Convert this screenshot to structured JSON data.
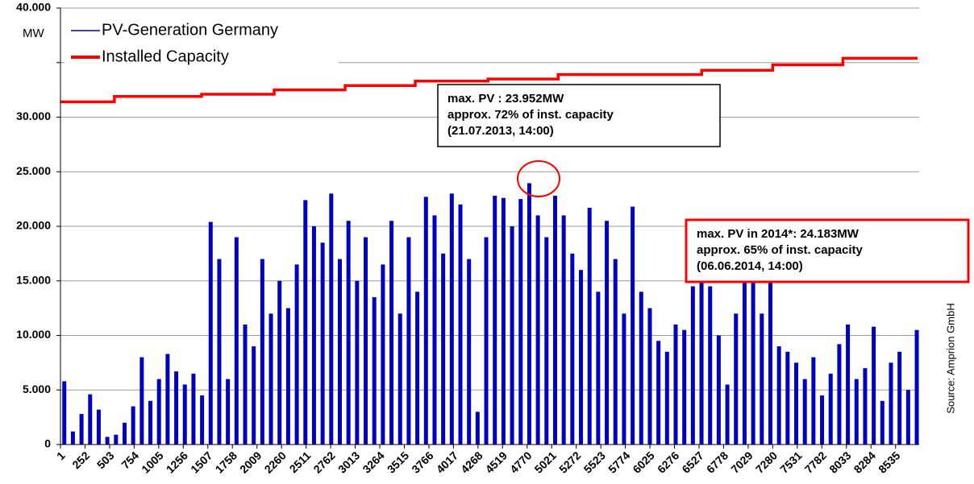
{
  "chart_data": {
    "type": "spike-step",
    "y_unit": "MW",
    "source": "Source: Amprion GmbH",
    "xlim": [
      1,
      8760
    ],
    "ylim": [
      0,
      40000
    ],
    "grid": true,
    "xticks": [
      1,
      252,
      503,
      754,
      1005,
      1256,
      1507,
      1758,
      2009,
      2260,
      2511,
      2762,
      3013,
      3264,
      3515,
      3766,
      4017,
      4268,
      4519,
      4770,
      5021,
      5272,
      5523,
      5774,
      6025,
      6276,
      6527,
      6778,
      7029,
      7280,
      7531,
      7782,
      8033,
      8284,
      8535
    ],
    "yticks": [
      0,
      {
        "value": 5000,
        "label": "5.000"
      },
      {
        "value": 10000,
        "label": "10.000"
      },
      {
        "value": 15000,
        "label": "15.000"
      },
      {
        "value": 20000,
        "label": "20.000"
      },
      {
        "value": 25000,
        "label": "25.000"
      },
      {
        "value": 30000,
        "label": "30.000"
      },
      {
        "value": 35000,
        "label": null
      },
      {
        "value": 40000,
        "label": "40.000"
      }
    ],
    "series": [
      {
        "name": "PV-Generation Germany",
        "color": "#0000c0",
        "style": "spikes",
        "x": [
          40,
          128,
          216,
          304,
          392,
          480,
          568,
          656,
          744,
          832,
          920,
          1008,
          1096,
          1184,
          1272,
          1360,
          1448,
          1536,
          1624,
          1712,
          1800,
          1888,
          1976,
          2064,
          2152,
          2240,
          2328,
          2416,
          2504,
          2592,
          2680,
          2768,
          2856,
          2944,
          3032,
          3120,
          3208,
          3296,
          3384,
          3472,
          3560,
          3648,
          3736,
          3824,
          3912,
          4000,
          4088,
          4176,
          4264,
          4352,
          4440,
          4528,
          4616,
          4704,
          4792,
          4880,
          4968,
          5056,
          5144,
          5232,
          5320,
          5408,
          5496,
          5584,
          5672,
          5760,
          5848,
          5936,
          6024,
          6112,
          6200,
          6288,
          6376,
          6464,
          6552,
          6640,
          6728,
          6816,
          6904,
          6992,
          7080,
          7168,
          7256,
          7344,
          7432,
          7520,
          7608,
          7696,
          7784,
          7872,
          7960,
          8048,
          8136,
          8224,
          8312,
          8400,
          8488,
          8576,
          8664,
          8752
        ],
        "values": [
          5800,
          1200,
          2800,
          4600,
          3200,
          700,
          900,
          2000,
          3500,
          8000,
          4000,
          6000,
          8300,
          6700,
          5500,
          6500,
          4500,
          20400,
          17000,
          6000,
          19000,
          11000,
          9000,
          17000,
          12000,
          15000,
          12500,
          16500,
          22400,
          20000,
          18500,
          23000,
          17000,
          20500,
          15000,
          19000,
          13500,
          16500,
          20500,
          12000,
          19000,
          14000,
          22700,
          21000,
          17500,
          23000,
          22000,
          17000,
          3000,
          19000,
          22800,
          22600,
          20000,
          22500,
          23952,
          21000,
          19000,
          22800,
          21000,
          17500,
          16000,
          21700,
          14000,
          20500,
          17000,
          12000,
          21800,
          14000,
          12500,
          9500,
          8500,
          11000,
          10500,
          14500,
          17000,
          14500,
          10000,
          5500,
          12000,
          15500,
          16500,
          12000,
          15000,
          9000,
          8500,
          7500,
          6000,
          8000,
          4500,
          6500,
          9200,
          11000,
          6000,
          7000,
          10800,
          4000,
          7500,
          8500,
          5000,
          10500
        ]
      },
      {
        "name": "Installed Capacity",
        "color": "#ff0000",
        "style": "step",
        "x": [
          1,
          552,
          1443,
          2185,
          2910,
          3627,
          4370,
          5087,
          6554,
          7280,
          7997,
          8760
        ],
        "values": [
          31400,
          31900,
          32100,
          32500,
          32900,
          33300,
          33500,
          33900,
          34300,
          34800,
          35400,
          35400
        ]
      }
    ],
    "annotations": [
      {
        "lines": [
          "max. PV : 23.952MW",
          "approx. 72% of inst. capacity",
          "(21.07.2013, 14:00)"
        ]
      },
      {
        "lines": [
          "max. PV in 2014*: 24.183MW",
          "approx. 65% of inst. capacity",
          "(06.06.2014, 14:00)"
        ]
      }
    ]
  }
}
